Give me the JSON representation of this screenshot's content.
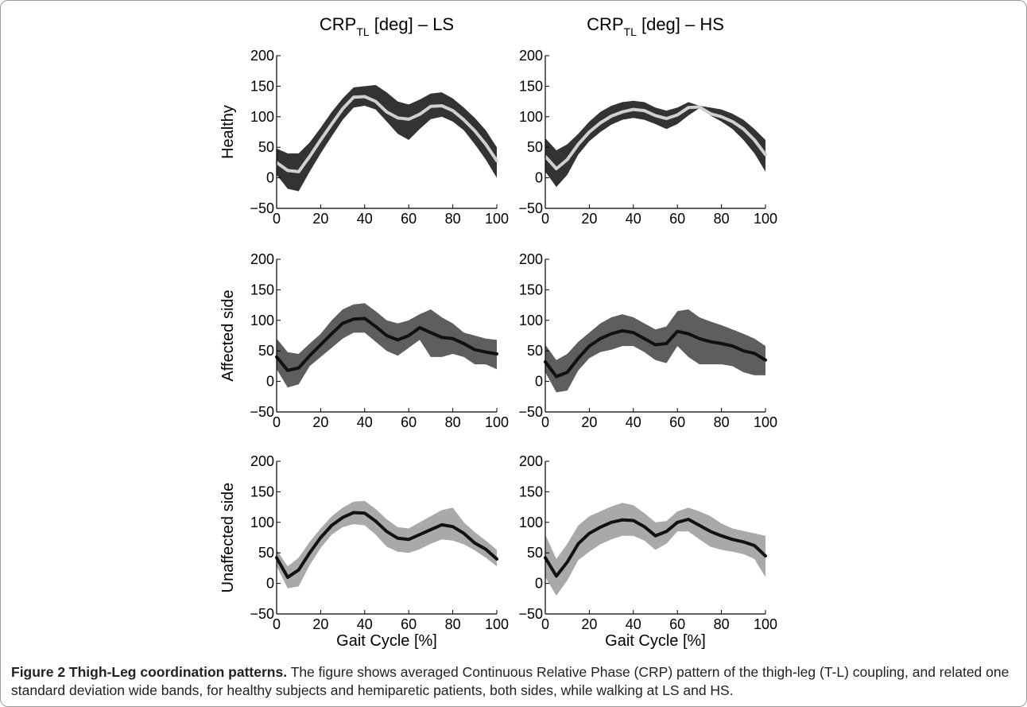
{
  "chart_data": {
    "type": "line",
    "column_titles": [
      {
        "main": "CRP",
        "sub": "TL",
        "rest": " [deg] – LS"
      },
      {
        "main": "CRP",
        "sub": "TL",
        "rest": " [deg] – HS"
      }
    ],
    "row_labels": [
      "Healthy",
      "Affected side",
      "Unaffected side"
    ],
    "xlabel": "Gait Cycle [%]",
    "xlim": [
      0,
      100
    ],
    "ylim": [
      -50,
      200
    ],
    "xticks": [
      "0",
      "20",
      "40",
      "60",
      "80",
      "100"
    ],
    "yticks": [
      "200",
      "150",
      "100",
      "50",
      "0",
      "−50"
    ],
    "colors": {
      "healthy_band": "#333333",
      "healthy_line": "#d0d0d0",
      "affected_band": "#5e5e5e",
      "affected_line": "#111111",
      "unaffected_band": "#a9a9a9",
      "unaffected_line": "#111111"
    },
    "panels": [
      {
        "row": "Healthy",
        "column": "LS",
        "x": [
          0,
          5,
          10,
          15,
          20,
          25,
          30,
          35,
          40,
          45,
          50,
          55,
          60,
          65,
          70,
          75,
          80,
          85,
          90,
          95,
          100
        ],
        "mean": [
          25,
          12,
          10,
          35,
          62,
          88,
          113,
          132,
          133,
          125,
          108,
          98,
          96,
          104,
          117,
          118,
          110,
          95,
          77,
          55,
          28
        ],
        "upper": [
          48,
          40,
          40,
          58,
          82,
          108,
          130,
          148,
          150,
          152,
          140,
          125,
          120,
          128,
          138,
          140,
          130,
          115,
          98,
          78,
          50
        ],
        "lower": [
          5,
          -18,
          -22,
          10,
          40,
          68,
          95,
          115,
          118,
          112,
          92,
          72,
          62,
          80,
          96,
          100,
          92,
          78,
          55,
          30,
          0
        ]
      },
      {
        "row": "Healthy",
        "column": "HS",
        "x": [
          0,
          5,
          10,
          15,
          20,
          25,
          30,
          35,
          40,
          45,
          50,
          55,
          60,
          65,
          70,
          75,
          80,
          85,
          90,
          95,
          100
        ],
        "mean": [
          35,
          15,
          30,
          55,
          75,
          90,
          101,
          108,
          112,
          110,
          102,
          97,
          103,
          115,
          116,
          105,
          100,
          92,
          80,
          62,
          38
        ],
        "upper": [
          65,
          45,
          55,
          72,
          92,
          108,
          118,
          124,
          126,
          124,
          115,
          110,
          115,
          124,
          118,
          115,
          112,
          105,
          95,
          80,
          62
        ],
        "lower": [
          10,
          -15,
          5,
          38,
          60,
          75,
          87,
          95,
          98,
          95,
          88,
          80,
          88,
          102,
          114,
          102,
          92,
          80,
          62,
          40,
          10
        ]
      },
      {
        "row": "Affected side",
        "column": "LS",
        "x": [
          0,
          5,
          10,
          15,
          20,
          25,
          30,
          35,
          40,
          45,
          50,
          55,
          60,
          65,
          70,
          75,
          80,
          85,
          90,
          95,
          100
        ],
        "mean": [
          40,
          18,
          22,
          42,
          60,
          78,
          95,
          102,
          103,
          90,
          75,
          68,
          75,
          88,
          80,
          72,
          70,
          62,
          52,
          48,
          45
        ],
        "upper": [
          70,
          48,
          45,
          62,
          78,
          100,
          118,
          126,
          128,
          115,
          100,
          95,
          100,
          110,
          118,
          105,
          95,
          80,
          75,
          70,
          68
        ],
        "lower": [
          20,
          -10,
          -5,
          25,
          40,
          55,
          70,
          80,
          80,
          65,
          50,
          42,
          55,
          68,
          40,
          40,
          45,
          40,
          28,
          28,
          20
        ]
      },
      {
        "row": "Affected side",
        "column": "HS",
        "x": [
          0,
          5,
          10,
          15,
          20,
          25,
          30,
          35,
          40,
          45,
          50,
          55,
          60,
          65,
          70,
          75,
          80,
          85,
          90,
          95,
          100
        ],
        "mean": [
          32,
          8,
          15,
          38,
          58,
          70,
          78,
          83,
          80,
          70,
          60,
          62,
          82,
          78,
          70,
          65,
          62,
          58,
          50,
          46,
          35
        ],
        "upper": [
          60,
          35,
          45,
          65,
          80,
          95,
          105,
          110,
          105,
          95,
          85,
          90,
          115,
          118,
          105,
          98,
          92,
          85,
          78,
          70,
          58
        ],
        "lower": [
          15,
          -18,
          -15,
          18,
          38,
          48,
          52,
          58,
          58,
          48,
          35,
          30,
          58,
          40,
          28,
          28,
          28,
          25,
          15,
          10,
          10
        ]
      },
      {
        "row": "Unaffected side",
        "column": "LS",
        "x": [
          0,
          5,
          10,
          15,
          20,
          25,
          30,
          35,
          40,
          45,
          50,
          55,
          60,
          65,
          70,
          75,
          80,
          85,
          90,
          95,
          100
        ],
        "mean": [
          42,
          10,
          22,
          50,
          75,
          95,
          108,
          116,
          115,
          102,
          85,
          74,
          72,
          80,
          88,
          96,
          93,
          82,
          66,
          56,
          40
        ],
        "upper": [
          55,
          28,
          42,
          68,
          90,
          110,
          124,
          134,
          135,
          122,
          105,
          92,
          90,
          100,
          110,
          120,
          124,
          100,
          84,
          70,
          55
        ],
        "lower": [
          28,
          -8,
          -5,
          30,
          58,
          80,
          92,
          97,
          95,
          80,
          60,
          52,
          50,
          56,
          65,
          72,
          70,
          64,
          54,
          42,
          28
        ]
      },
      {
        "row": "Unaffected side",
        "column": "HS",
        "x": [
          0,
          5,
          10,
          15,
          20,
          25,
          30,
          35,
          40,
          45,
          50,
          55,
          60,
          65,
          70,
          75,
          80,
          85,
          90,
          95,
          100
        ],
        "mean": [
          42,
          12,
          35,
          65,
          82,
          92,
          100,
          104,
          103,
          93,
          78,
          85,
          100,
          105,
          95,
          85,
          78,
          72,
          68,
          62,
          45
        ],
        "upper": [
          80,
          40,
          65,
          95,
          110,
          118,
          126,
          132,
          128,
          115,
          100,
          102,
          118,
          124,
          118,
          110,
          98,
          90,
          86,
          82,
          78
        ],
        "lower": [
          10,
          -20,
          5,
          38,
          52,
          64,
          72,
          78,
          78,
          70,
          55,
          65,
          85,
          85,
          72,
          60,
          55,
          52,
          48,
          40,
          10
        ]
      }
    ]
  },
  "caption": {
    "title": "Figure 2 Thigh-Leg coordination patterns.",
    "text": " The figure shows averaged Continuous Relative Phase (CRP) pattern of the thigh-leg (T-L) coupling, and related one standard deviation wide bands, for healthy subjects and hemiparetic patients, both sides, while walking at LS and HS."
  }
}
